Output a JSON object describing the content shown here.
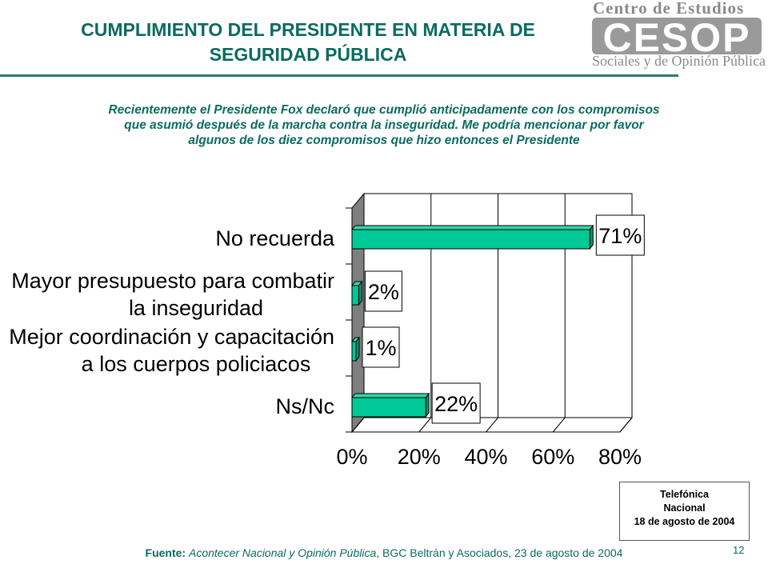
{
  "title": {
    "line1": "CUMPLIMIENTO DEL PRESIDENTE EN MATERIA DE",
    "line2": "SEGURIDAD PÚBLICA"
  },
  "logo": {
    "top_text": "Centro de Estudios",
    "mark_text": "CESOP",
    "bottom_text": "Sociales y de Opinión Pública"
  },
  "question": {
    "line1": "Recientemente el Presidente Fox declaró que cumplió anticipadamente con los compromisos",
    "line2": "que asumió después de la marcha contra la inseguridad. Me podría mencionar por favor",
    "line3": "algunos de los diez compromisos que hizo entonces el Presidente"
  },
  "chart_data": {
    "type": "bar",
    "orientation": "horizontal",
    "categories": [
      [
        "No recuerda"
      ],
      [
        "Mayor presupuesto para combatir",
        "la inseguridad"
      ],
      [
        "Mejor coordinación y capacitación",
        "a los cuerpos policiacos"
      ],
      [
        "Ns/Nc"
      ]
    ],
    "values": [
      71,
      2,
      1,
      22
    ],
    "value_labels": [
      "71%",
      "2%",
      "1%",
      "22%"
    ],
    "xlim": [
      0,
      80
    ],
    "xticks": [
      "0%",
      "20%",
      "40%",
      "60%",
      "80%"
    ],
    "grid": true,
    "bar_color": "#00c896",
    "style": "3d"
  },
  "note": {
    "line1": "Telefónica",
    "line2": "Nacional",
    "line3": "18 de agosto de 2004"
  },
  "footer": {
    "label": "Fuente:",
    "source_italic": "Acontecer Nacional y Opinión Pública",
    "source_rest": ", BGC Beltrán y Asociados, 23 de agosto de 2004"
  },
  "page_number": "12"
}
